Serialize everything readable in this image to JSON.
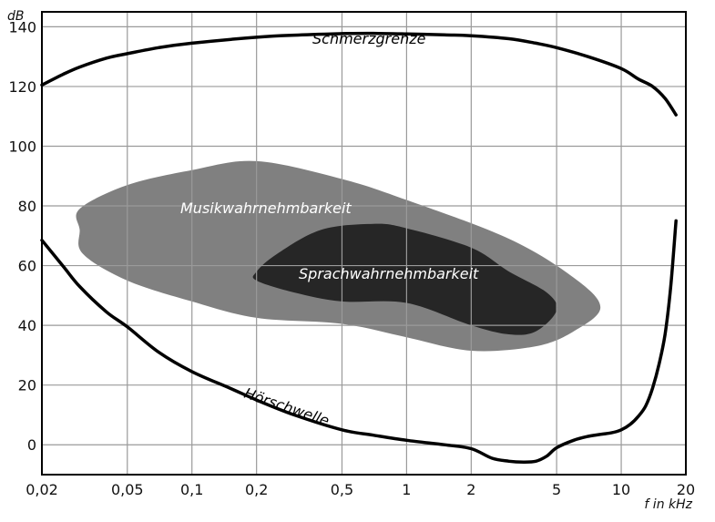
{
  "chart_data": {
    "type": "line",
    "x_unit_label": "f in kHz",
    "y_unit_label": "dB",
    "x_scale": "log",
    "xlim": [
      0.02,
      20
    ],
    "ylim": [
      -10,
      145
    ],
    "grid": true,
    "x_ticks": [
      {
        "value": 0.02,
        "label": "0,02"
      },
      {
        "value": 0.05,
        "label": "0,05"
      },
      {
        "value": 0.1,
        "label": "0,1"
      },
      {
        "value": 0.2,
        "label": "0,2"
      },
      {
        "value": 0.5,
        "label": "0,5"
      },
      {
        "value": 1,
        "label": "1"
      },
      {
        "value": 2,
        "label": "2"
      },
      {
        "value": 5,
        "label": "5"
      },
      {
        "value": 10,
        "label": "10"
      },
      {
        "value": 20,
        "label": "20"
      }
    ],
    "y_ticks": [
      {
        "value": 0,
        "label": "0"
      },
      {
        "value": 20,
        "label": "20"
      },
      {
        "value": 40,
        "label": "40"
      },
      {
        "value": 60,
        "label": "60"
      },
      {
        "value": 80,
        "label": "80"
      },
      {
        "value": 100,
        "label": "100"
      },
      {
        "value": 120,
        "label": "120"
      },
      {
        "value": 140,
        "label": "140"
      }
    ],
    "curves": [
      {
        "name": "Schmerzgrenze",
        "color": "#000000",
        "points": [
          [
            0.02,
            120.5
          ],
          [
            0.025,
            124
          ],
          [
            0.03,
            126.5
          ],
          [
            0.04,
            129.5
          ],
          [
            0.05,
            131
          ],
          [
            0.07,
            133
          ],
          [
            0.1,
            134.5
          ],
          [
            0.2,
            136.5
          ],
          [
            0.3,
            137.2
          ],
          [
            0.5,
            137.7
          ],
          [
            0.7,
            137.8
          ],
          [
            1,
            137.6
          ],
          [
            1.5,
            137.3
          ],
          [
            2,
            137
          ],
          [
            3,
            136
          ],
          [
            4,
            134.5
          ],
          [
            5,
            133
          ],
          [
            7,
            130
          ],
          [
            10,
            126
          ],
          [
            12,
            122.5
          ],
          [
            14,
            120
          ],
          [
            16,
            116
          ],
          [
            18,
            110.5
          ]
        ]
      },
      {
        "name": "Hörschwelle",
        "color": "#000000",
        "points": [
          [
            0.02,
            68.5
          ],
          [
            0.025,
            60
          ],
          [
            0.03,
            53
          ],
          [
            0.04,
            44.5
          ],
          [
            0.05,
            39.5
          ],
          [
            0.07,
            31
          ],
          [
            0.1,
            24.5
          ],
          [
            0.15,
            19
          ],
          [
            0.2,
            15
          ],
          [
            0.3,
            10
          ],
          [
            0.5,
            5
          ],
          [
            0.7,
            3.2
          ],
          [
            1,
            1.5
          ],
          [
            1.5,
            0
          ],
          [
            2,
            -1.3
          ],
          [
            2.5,
            -4.5
          ],
          [
            3,
            -5.5
          ],
          [
            3.5,
            -5.8
          ],
          [
            4,
            -5.5
          ],
          [
            4.5,
            -3.8
          ],
          [
            5,
            -1
          ],
          [
            6,
            1.5
          ],
          [
            7,
            2.8
          ],
          [
            8,
            3.5
          ],
          [
            9,
            4
          ],
          [
            10,
            5
          ],
          [
            11,
            6.8
          ],
          [
            12,
            9.5
          ],
          [
            13,
            13
          ],
          [
            14,
            19
          ],
          [
            15,
            27
          ],
          [
            16,
            37
          ],
          [
            17,
            53
          ],
          [
            18,
            75
          ]
        ]
      }
    ],
    "areas": [
      {
        "name": "Musikwahrnehmbarkeit",
        "color": "#808080",
        "label_color": "#ffffff",
        "outline": [
          [
            0.03,
            72
          ],
          [
            0.031,
            64
          ],
          [
            0.05,
            55
          ],
          [
            0.1,
            48
          ],
          [
            0.2,
            42.5
          ],
          [
            0.5,
            40.5
          ],
          [
            1,
            36
          ],
          [
            2,
            31.5
          ],
          [
            4,
            33
          ],
          [
            6,
            38
          ],
          [
            8,
            46
          ],
          [
            6,
            56
          ],
          [
            3,
            69
          ],
          [
            1,
            82
          ],
          [
            0.5,
            89
          ],
          [
            0.2,
            95
          ],
          [
            0.1,
            92
          ],
          [
            0.05,
            87
          ],
          [
            0.03,
            79
          ]
        ]
      },
      {
        "name": "Sprachwahrnehmbarkeit",
        "color": "#262626",
        "label_color": "#ffffff",
        "outline": [
          [
            0.2,
            58
          ],
          [
            0.25,
            64
          ],
          [
            0.4,
            72
          ],
          [
            0.7,
            74
          ],
          [
            1,
            72.5
          ],
          [
            2,
            66
          ],
          [
            3,
            58
          ],
          [
            4.5,
            51
          ],
          [
            5,
            45
          ],
          [
            4,
            38
          ],
          [
            3,
            37
          ],
          [
            2,
            40
          ],
          [
            1,
            47.5
          ],
          [
            0.5,
            48
          ],
          [
            0.3,
            51
          ],
          [
            0.2,
            55
          ]
        ]
      }
    ]
  }
}
